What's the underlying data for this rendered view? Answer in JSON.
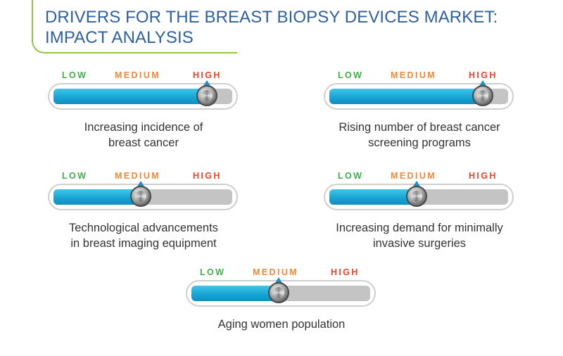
{
  "title": "DRIVERS FOR THE BREAST BIOPSY DEVICES MARKET:\nIMPACT ANALYSIS",
  "title_lines": [
    "DRIVERS FOR THE BREAST BIOPSY DEVICES MARKET:",
    "IMPACT ANALYSIS"
  ],
  "scale_labels": {
    "low": "LOW",
    "medium": "MEDIUM",
    "high": "HIGH"
  },
  "colors": {
    "title": "#2e5f9e",
    "accent_line": "#8dc63f",
    "low": "#3fae49",
    "medium": "#f0883a",
    "high": "#e2452b",
    "fill": "#1fa9d6",
    "track": "#c4c4c4",
    "pointer": "#1d8fc4"
  },
  "gauges": [
    {
      "caption": "Increasing incidence of\nbreast cancer",
      "level_percent": 86,
      "level": "High"
    },
    {
      "caption": "Rising number of breast cancer\nscreening programs",
      "level_percent": 86,
      "level": "High"
    },
    {
      "caption": "Technological advancements\nin breast imaging equipment",
      "level_percent": 49,
      "level": "Medium"
    },
    {
      "caption": "Increasing demand for minimally\ninvasive surgeries",
      "level_percent": 49,
      "level": "Medium"
    },
    {
      "caption": "Aging women population",
      "level_percent": 49,
      "level": "Medium"
    }
  ]
}
